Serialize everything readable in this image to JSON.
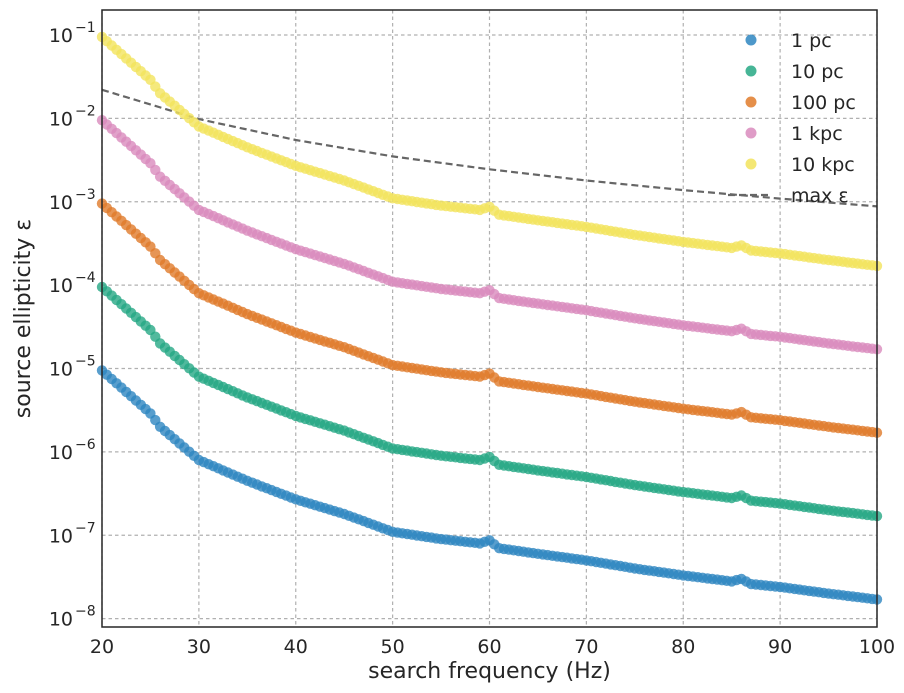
{
  "chart_data": {
    "type": "scatter",
    "title": "",
    "xlabel": "search frequency (Hz)",
    "ylabel": "source ellipticity ε",
    "xlim": [
      20,
      100
    ],
    "ylim_log10": [
      -8.1,
      -0.7
    ],
    "yscale": "log",
    "grid": true,
    "legend_position": "top-right",
    "x_ticks": [
      20,
      30,
      40,
      50,
      60,
      70,
      80,
      90,
      100
    ],
    "y_ticks": [
      {
        "base": "10",
        "exp": "−1",
        "log10": -1
      },
      {
        "base": "10",
        "exp": "−2",
        "log10": -2
      },
      {
        "base": "10",
        "exp": "−3",
        "log10": -3
      },
      {
        "base": "10",
        "exp": "−4",
        "log10": -4
      },
      {
        "base": "10",
        "exp": "−5",
        "log10": -5
      },
      {
        "base": "10",
        "exp": "−6",
        "log10": -6
      },
      {
        "base": "10",
        "exp": "−7",
        "log10": -7
      },
      {
        "base": "10",
        "exp": "−8",
        "log10": -8
      }
    ],
    "x": [
      20,
      25,
      26,
      30,
      35,
      40,
      45,
      50,
      55,
      59,
      60,
      61,
      65,
      70,
      75,
      80,
      85,
      86,
      87,
      90,
      95,
      100
    ],
    "series": [
      {
        "name": "1 pc",
        "color": "#2e86c1",
        "values": [
          9.5e-06,
          2.9e-06,
          2e-06,
          8e-07,
          4.5e-07,
          2.7e-07,
          1.8e-07,
          1.1e-07,
          9e-08,
          8e-08,
          8.7e-08,
          7e-08,
          6e-08,
          5e-08,
          4e-08,
          3.3e-08,
          2.8e-08,
          3e-08,
          2.6e-08,
          2.4e-08,
          2e-08,
          1.7e-08
        ]
      },
      {
        "name": "10 pc",
        "color": "#26a884",
        "values": [
          9.5e-05,
          2.9e-05,
          2e-05,
          8e-06,
          4.5e-06,
          2.7e-06,
          1.8e-06,
          1.1e-06,
          9e-07,
          8e-07,
          8.7e-07,
          7e-07,
          6e-07,
          5e-07,
          4e-07,
          3.3e-07,
          2.8e-07,
          3e-07,
          2.6e-07,
          2.4e-07,
          2e-07,
          1.7e-07
        ]
      },
      {
        "name": "100 pc",
        "color": "#e07b2a",
        "values": [
          0.00095,
          0.00029,
          0.0002,
          8e-05,
          4.5e-05,
          2.7e-05,
          1.8e-05,
          1.1e-05,
          9e-06,
          8e-06,
          8.7e-06,
          7e-06,
          6e-06,
          5e-06,
          4e-06,
          3.3e-06,
          2.8e-06,
          3e-06,
          2.6e-06,
          2.4e-06,
          2e-06,
          1.7e-06
        ]
      },
      {
        "name": "1 kpc",
        "color": "#d98bbd",
        "values": [
          0.0095,
          0.0029,
          0.002,
          0.0008,
          0.00045,
          0.00027,
          0.00018,
          0.00011,
          9e-05,
          8e-05,
          8.7e-05,
          7e-05,
          6e-05,
          5e-05,
          4e-05,
          3.3e-05,
          2.8e-05,
          3e-05,
          2.6e-05,
          2.4e-05,
          2e-05,
          1.7e-05
        ]
      },
      {
        "name": "10 kpc",
        "color": "#f2e35c",
        "values": [
          0.095,
          0.029,
          0.02,
          0.008,
          0.0045,
          0.0027,
          0.0018,
          0.0011,
          0.0009,
          0.0008,
          0.00087,
          0.0007,
          0.0006,
          0.0005,
          0.0004,
          0.00033,
          0.00028,
          0.0003,
          0.00026,
          0.00024,
          0.0002,
          0.00017
        ]
      }
    ],
    "reference_line": {
      "name": "max ε",
      "color": "#666666",
      "style": "dashed",
      "x": [
        20,
        30,
        40,
        50,
        60,
        70,
        80,
        90,
        100
      ],
      "values": [
        0.022,
        0.0098,
        0.0055,
        0.0035,
        0.00245,
        0.0018,
        0.00138,
        0.00109,
        0.00088
      ]
    }
  }
}
